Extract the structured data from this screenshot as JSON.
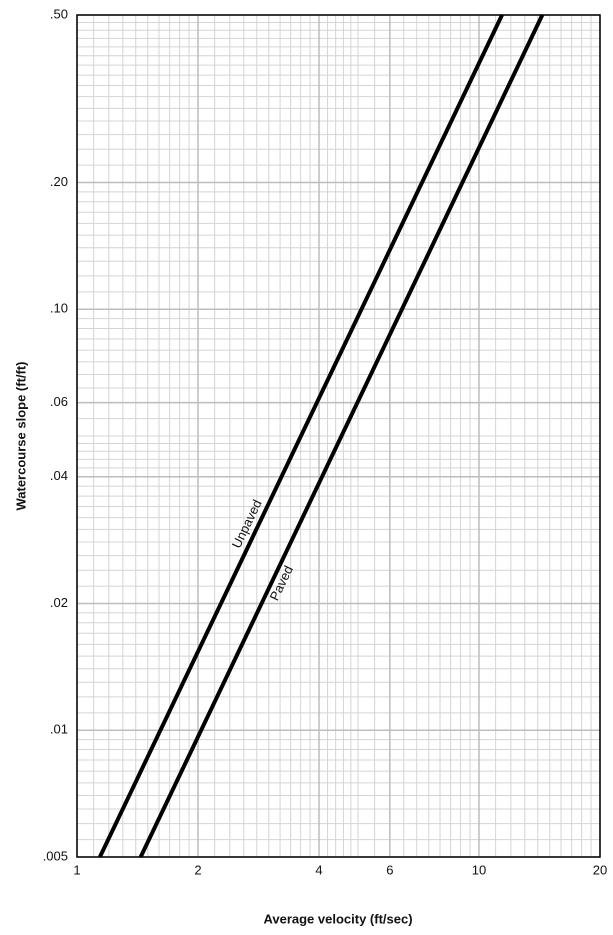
{
  "chart_data": {
    "type": "line",
    "log_scale": true,
    "grid": true,
    "x_label": "Average velocity (ft/sec)",
    "y_label": "Watercourse slope (ft/ft)",
    "xlim": [
      1,
      20
    ],
    "ylim": [
      0.005,
      0.5
    ],
    "xticks": [
      1,
      2,
      4,
      6,
      10,
      20
    ],
    "yticks": [
      {
        "value": 0.005,
        "label": ".005"
      },
      {
        "value": 0.01,
        "label": ".01"
      },
      {
        "value": 0.02,
        "label": ".02"
      },
      {
        "value": 0.04,
        "label": ".04"
      },
      {
        "value": 0.06,
        "label": ".06"
      },
      {
        "value": 0.1,
        "label": ".10"
      },
      {
        "value": 0.2,
        "label": ".20"
      },
      {
        "value": 0.5,
        "label": ".50"
      }
    ],
    "series": [
      {
        "name": "Unpaved",
        "color": "#000000",
        "x": [
          1.14,
          11.41
        ],
        "values": [
          0.005,
          0.5
        ]
      },
      {
        "name": "Paved",
        "color": "#000000",
        "x": [
          1.44,
          14.37
        ],
        "values": [
          0.005,
          0.5
        ]
      }
    ]
  }
}
